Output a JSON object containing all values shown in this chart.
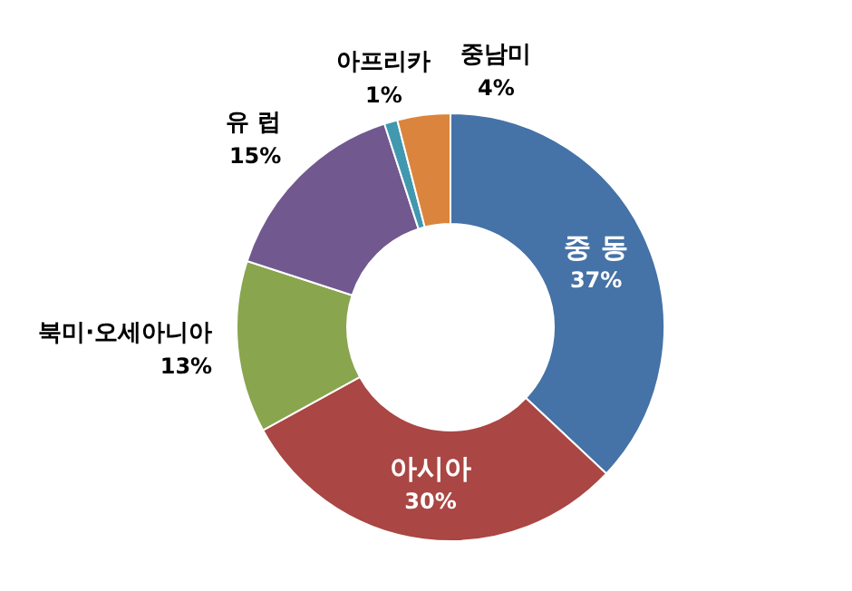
{
  "chart_data": {
    "type": "donut",
    "categories": [
      "중 동",
      "아시아",
      "북미·오세아니아",
      "유 럽",
      "아프리카",
      "중남미"
    ],
    "values": [
      37,
      30,
      13,
      15,
      1,
      4
    ],
    "value_labels": [
      "37%",
      "30%",
      "13%",
      "15%",
      "1%",
      "4%"
    ],
    "colors": [
      "#4572a7",
      "#aa4643",
      "#89a54e",
      "#71588f",
      "#4198af",
      "#db843d"
    ]
  }
}
